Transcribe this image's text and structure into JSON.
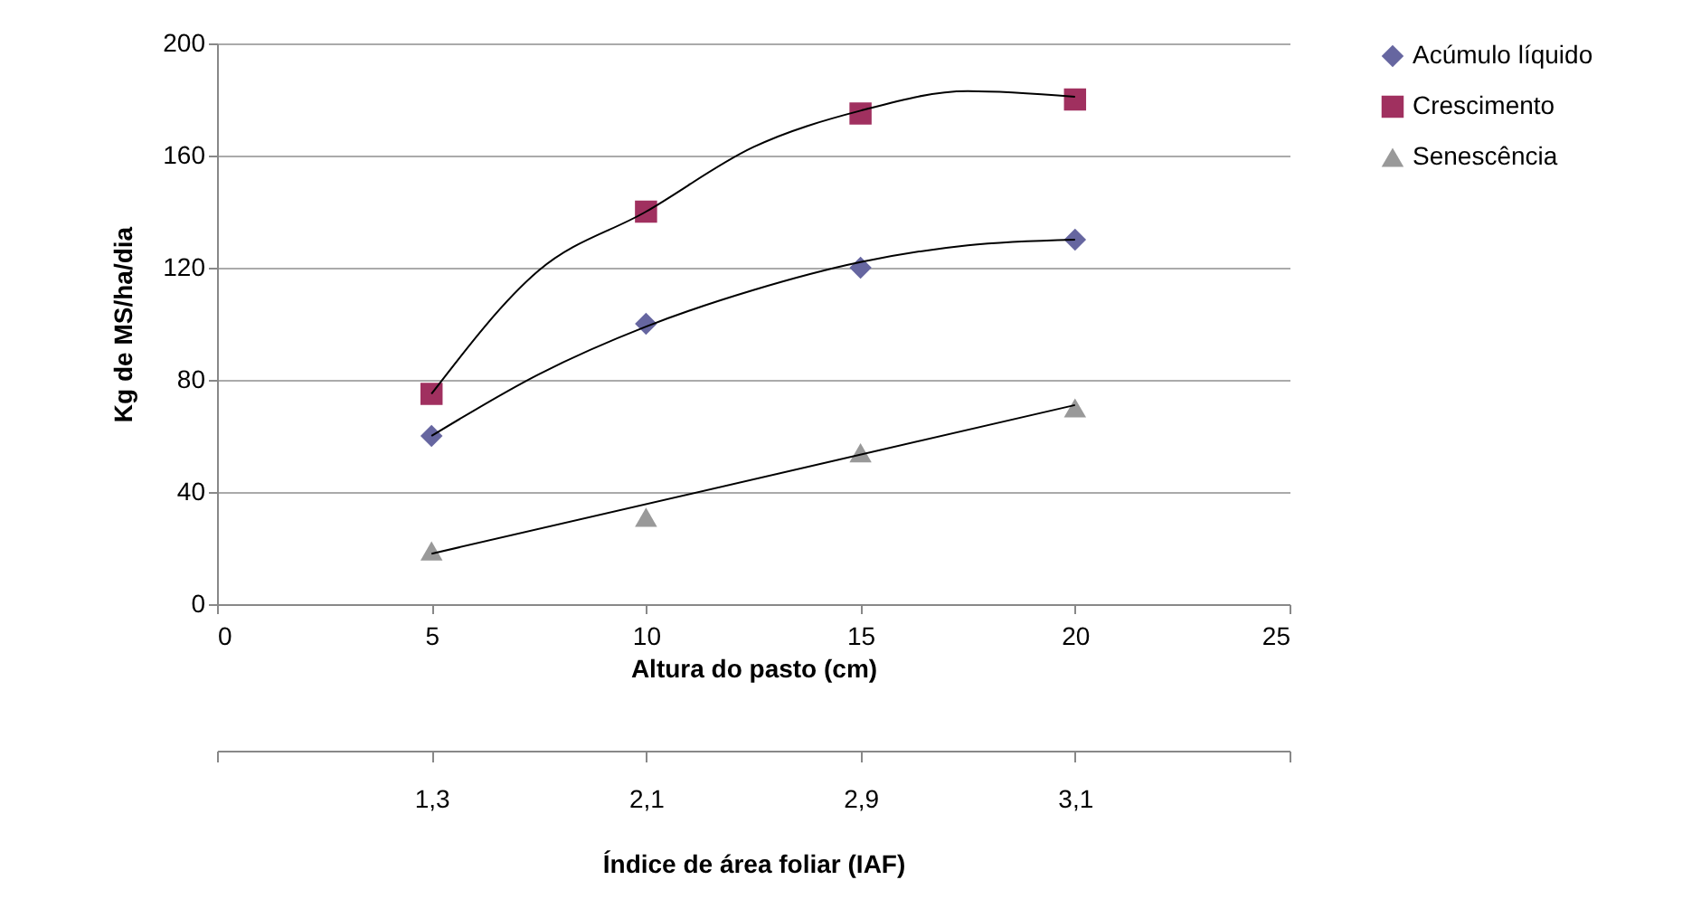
{
  "chart_data": {
    "type": "scatter",
    "xlabel": "Altura do pasto (cm)",
    "ylabel": "Kg de MS/ha/dia",
    "x2label": "Índice de área foliar (IAF)",
    "xlim": [
      0,
      25
    ],
    "xticks": [
      0,
      5,
      10,
      15,
      20,
      25
    ],
    "ylim": [
      0,
      200
    ],
    "yticks": [
      0,
      40,
      80,
      120,
      160,
      200
    ],
    "annotations": [
      {
        "text": "1,3",
        "x": 5
      },
      {
        "text": "2,1",
        "x": 10
      },
      {
        "text": "2,9",
        "x": 15
      },
      {
        "text": "3,1",
        "x": 20
      }
    ],
    "grid": "y",
    "legend": "right",
    "series": [
      {
        "name": "Acúmulo líquido",
        "type": "scatter",
        "marker": "diamond",
        "color": "#6666a0",
        "x": [
          5,
          10,
          15,
          20
        ],
        "values": [
          60,
          100,
          120,
          130
        ]
      },
      {
        "name": "Crescimento",
        "type": "scatter",
        "marker": "square",
        "color": "#a0305f",
        "x": [
          5,
          10,
          15,
          20
        ],
        "values": [
          75,
          140,
          175,
          180
        ]
      },
      {
        "name": "Senescência",
        "type": "scatter",
        "marker": "triangle",
        "color": "#999999",
        "x": [
          5,
          10,
          15,
          20
        ],
        "values": [
          19,
          31,
          54,
          70
        ]
      },
      {
        "type": "line",
        "color": "#000000",
        "x": [
          5,
          7.5,
          10,
          12.5,
          15,
          17.5,
          20
        ],
        "values": [
          60,
          82,
          99,
          112,
          122,
          128,
          130
        ]
      },
      {
        "type": "line",
        "color": "#000000",
        "x": [
          5,
          7.5,
          10,
          12.5,
          15,
          17.5,
          20
        ],
        "values": [
          75,
          119,
          140,
          163,
          176,
          183,
          181
        ]
      },
      {
        "type": "line",
        "color": "#000000",
        "x": [
          5,
          20
        ],
        "values": [
          18,
          71
        ]
      }
    ]
  }
}
